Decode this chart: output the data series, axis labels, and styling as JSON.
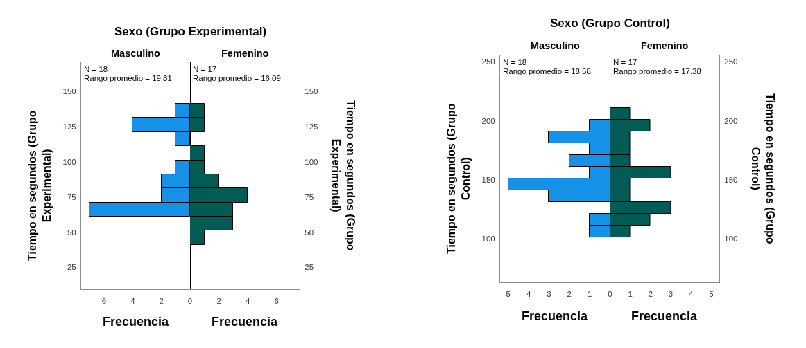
{
  "chart_data": [
    {
      "type": "histogram",
      "orientation": "horizontal",
      "title": "Sexo (Grupo Experimental)",
      "subtitle": "Masculino",
      "xlabel": "Frecuencia",
      "ylabel": "Tiempo en segundos (Grupo Experimental)",
      "annotations": [
        "N = 18",
        "Rango promedio = 19.81"
      ],
      "bins": [
        41,
        51,
        61,
        71,
        81,
        91,
        101,
        111,
        121,
        131,
        141
      ],
      "values": [
        0,
        0,
        7,
        2,
        2,
        1,
        0,
        1,
        4,
        1
      ],
      "color": "#1591e8",
      "xlim": [
        7.6,
        0
      ],
      "xticks": [
        6,
        4,
        2,
        0
      ],
      "ylim": [
        9.5,
        170.5
      ],
      "yticks": [
        25,
        50,
        75,
        100,
        125,
        150
      ]
    },
    {
      "type": "histogram",
      "orientation": "horizontal",
      "subtitle": "Femenino",
      "xlabel": "Frecuencia",
      "ylabel": "Tiempo en segundos (Grupo Experimental)",
      "annotations": [
        "N = 17",
        "Rango promedio = 16.09"
      ],
      "bins": [
        41,
        51,
        61,
        71,
        81,
        91,
        101,
        111,
        121,
        131,
        141
      ],
      "values": [
        1,
        3,
        3,
        4,
        2,
        1,
        1,
        0,
        1,
        1
      ],
      "color": "#035b56",
      "xlim": [
        0,
        7.6
      ],
      "xticks": [
        2,
        4,
        6
      ],
      "ylim": [
        9.5,
        170.5
      ],
      "yticks": [
        25,
        50,
        75,
        100,
        125,
        150
      ]
    },
    {
      "type": "histogram",
      "orientation": "horizontal",
      "title": "Sexo (Grupo Control)",
      "subtitle": "Masculino",
      "xlabel": "Frecuencia",
      "ylabel": "Tiempo en segundos (Grupo Control)",
      "annotations": [
        "N = 18",
        "Rango promedio = 18.58"
      ],
      "bins": [
        101,
        111,
        121,
        131,
        141,
        151,
        161,
        171,
        181,
        191,
        201,
        211
      ],
      "values": [
        1,
        1,
        0,
        3,
        5,
        1,
        2,
        1,
        3,
        1,
        0
      ],
      "color": "#1591e8",
      "xlim": [
        5.4,
        0
      ],
      "xticks": [
        5,
        4,
        3,
        2,
        1,
        0
      ],
      "ylim": [
        63,
        255.5
      ],
      "yticks": [
        100,
        150,
        200,
        250
      ]
    },
    {
      "type": "histogram",
      "orientation": "horizontal",
      "subtitle": "Femenino",
      "xlabel": "Frecuencia",
      "ylabel": "Tiempo en segundos (Grupo Control)",
      "annotations": [
        "N = 17",
        "Rango promedio = 17.38"
      ],
      "bins": [
        101,
        111,
        121,
        131,
        141,
        151,
        161,
        171,
        181,
        191,
        201,
        211
      ],
      "values": [
        1,
        2,
        3,
        1,
        1,
        3,
        1,
        1,
        1,
        2,
        1
      ],
      "color": "#035b56",
      "xlim": [
        0,
        5.4
      ],
      "xticks": [
        1,
        2,
        3,
        4,
        5
      ],
      "ylim": [
        63,
        255.5
      ],
      "yticks": [
        100,
        150,
        200,
        250
      ]
    }
  ]
}
